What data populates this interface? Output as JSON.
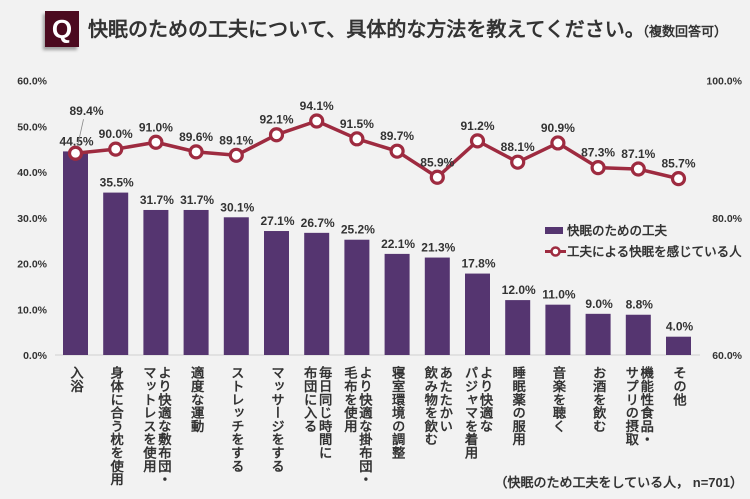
{
  "header": {
    "q_badge": "Q",
    "title": "快眠のための工夫について、具体的な方法を教えてください。",
    "note": "（複数回答可）"
  },
  "footnote": "（快眠のため工夫をしている人， n=701）",
  "colors": {
    "background": "#f2f2f2",
    "badge": "#4b0a1f",
    "bar": "#553570",
    "line": "#9e2b40",
    "axis": "#d0d0d0"
  },
  "chart_data": {
    "type": "bar",
    "title": "快眠のための工夫について、具体的な方法を教えてください。",
    "xlabel": "",
    "ylabel": "",
    "grid": false,
    "categories": [
      "入浴",
      "身体に合う枕を使用",
      "より快適な敷布団・\nマットレスを使用",
      "適度な運動",
      "ストレッチをする",
      "マッサージをする",
      "毎日同じ時間に\n布団に入る",
      "より快適な掛布団・\n毛布を使用",
      "寝室環境の調整",
      "あたたかい\n飲み物を飲む",
      "より快適な\nパジャマを着用",
      "睡眠薬の服用",
      "音楽を聴く",
      "お酒を飲む",
      "機能性食品・\nサプリの摂取",
      "その他"
    ],
    "series": [
      {
        "name": "快眠のための工夫",
        "type": "bar",
        "axis": "left",
        "values": [
          44.5,
          35.5,
          31.7,
          31.7,
          30.1,
          27.1,
          26.7,
          25.2,
          22.1,
          21.3,
          17.8,
          12.0,
          11.0,
          9.0,
          8.8,
          4.0
        ],
        "data_labels": [
          "44.5%",
          "35.5%",
          "31.7%",
          "31.7%",
          "30.1%",
          "27.1%",
          "26.7%",
          "25.2%",
          "22.1%",
          "21.3%",
          "17.8%",
          "12.0%",
          "11.0%",
          "9.0%",
          "8.8%",
          "4.0%"
        ]
      },
      {
        "name": "工夫による快眠を感じている人",
        "type": "line",
        "axis": "right",
        "values": [
          89.4,
          90.0,
          91.0,
          89.6,
          89.1,
          92.1,
          94.1,
          91.5,
          89.7,
          85.9,
          91.2,
          88.1,
          90.9,
          87.3,
          87.1,
          85.7
        ],
        "data_labels": [
          "89.4%",
          "90.0%",
          "91.0%",
          "89.6%",
          "89.1%",
          "92.1%",
          "94.1%",
          "91.5%",
          "89.7%",
          "85.9%",
          "91.2%",
          "88.1%",
          "90.9%",
          "87.3%",
          "87.1%",
          "85.7%"
        ]
      }
    ],
    "left_axis": {
      "min": 0,
      "max": 60,
      "step": 10,
      "tick_labels": [
        "0.0%",
        "10.0%",
        "20.0%",
        "30.0%",
        "40.0%",
        "50.0%",
        "60.0%"
      ]
    },
    "right_axis": {
      "min": 60,
      "max": 100,
      "step": 20,
      "tick_labels": [
        "60.0%",
        "80.0%",
        "100.0%"
      ]
    },
    "legend": {
      "position": "right",
      "entries": [
        "快眠のための工夫",
        "工夫による快眠を感じている人"
      ]
    }
  }
}
